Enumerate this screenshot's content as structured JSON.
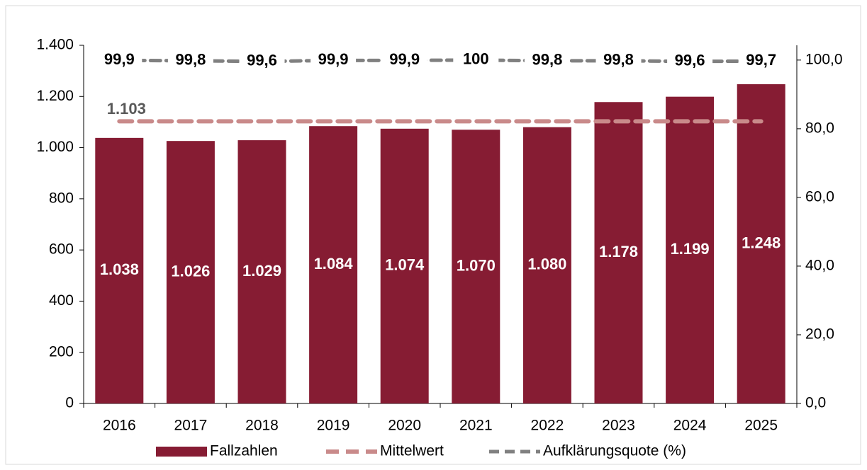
{
  "chart_data": {
    "type": "bar",
    "categories": [
      "2016",
      "2017",
      "2018",
      "2019",
      "2020",
      "2021",
      "2022",
      "2023",
      "2024",
      "2025"
    ],
    "series": [
      {
        "name": "Fallzahlen",
        "type": "bar",
        "color": "#861c33",
        "values": [
          1038,
          1026,
          1029,
          1084,
          1074,
          1070,
          1080,
          1178,
          1199,
          1248
        ],
        "value_labels": [
          "1.038",
          "1.026",
          "1.029",
          "1.084",
          "1.074",
          "1.070",
          "1.080",
          "1.178",
          "1.199",
          "1.248"
        ]
      },
      {
        "name": "Mittelwert",
        "type": "line",
        "color": "#c98a8a",
        "values": [
          1103,
          1103,
          1103,
          1103,
          1103,
          1103,
          1103,
          1103,
          1103,
          1103
        ],
        "value_labels": [
          "1.103",
          null,
          null,
          null,
          null,
          null,
          null,
          null,
          null,
          null
        ]
      },
      {
        "name": "Aufklärungsquote (%)",
        "type": "line",
        "axis": "y2",
        "color": "#808080",
        "values": [
          99.9,
          99.8,
          99.6,
          99.9,
          99.9,
          100,
          99.8,
          99.8,
          99.6,
          99.7
        ],
        "value_labels": [
          "99,9",
          "99,8",
          "99,6",
          "99,9",
          "99,9",
          "100",
          "99,8",
          "99,8",
          "99,6",
          "99,7"
        ]
      }
    ],
    "ylim": [
      0,
      1400
    ],
    "yticks": [
      0,
      200,
      400,
      600,
      800,
      {
        "value": 1000,
        "label": "1.000"
      },
      {
        "value": 1200,
        "label": "1.200"
      },
      {
        "value": 1400,
        "label": "1.400"
      }
    ],
    "y2lim": [
      0,
      104.3
    ],
    "y2ticks": [
      {
        "value": 0,
        "label": "0,0"
      },
      {
        "value": 20,
        "label": "20,0"
      },
      {
        "value": 40,
        "label": "40,0"
      },
      {
        "value": 60,
        "label": "60,0"
      },
      {
        "value": 80,
        "label": "80,0"
      },
      {
        "value": 100,
        "label": "100,0"
      }
    ],
    "legend": "bottom"
  }
}
